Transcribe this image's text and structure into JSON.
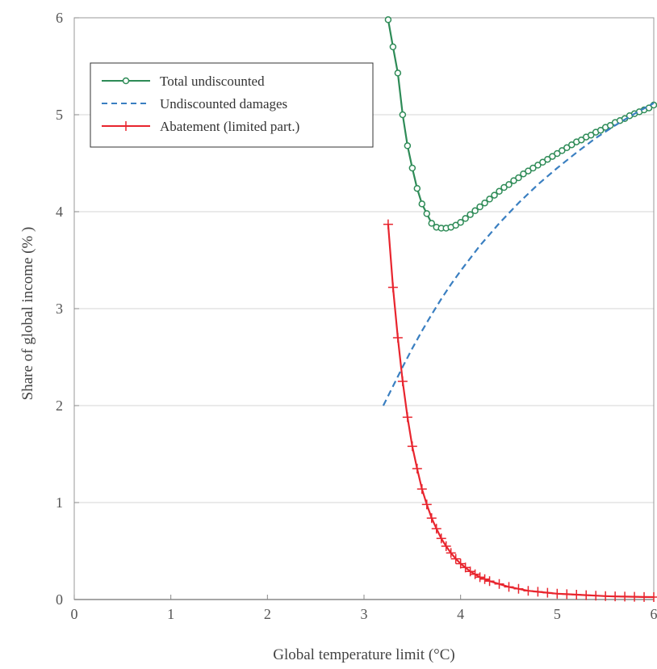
{
  "chart_data": {
    "type": "line",
    "xlabel": "Global temperature limit (°C)",
    "ylabel": "Share of global income (% )",
    "xlim": [
      0,
      6
    ],
    "ylim": [
      0,
      6
    ],
    "x_ticks": [
      "0",
      "1",
      "2",
      "3",
      "4",
      "5",
      "6"
    ],
    "y_ticks": [
      "0",
      "1",
      "2",
      "3",
      "4",
      "5",
      "6"
    ],
    "grid": "horizontal",
    "legend_position": "top-left",
    "series": [
      {
        "name": "Total undiscounted",
        "color": "#2e8b57",
        "style": "solid",
        "marker": "circle",
        "x": [
          3.25,
          3.3,
          3.35,
          3.4,
          3.45,
          3.5,
          3.55,
          3.6,
          3.65,
          3.7,
          3.75,
          3.8,
          3.85,
          3.9,
          3.95,
          4.0,
          4.05,
          4.1,
          4.15,
          4.2,
          4.25,
          4.3,
          4.35,
          4.4,
          4.45,
          4.5,
          4.55,
          4.6,
          4.65,
          4.7,
          4.75,
          4.8,
          4.85,
          4.9,
          4.95,
          5.0,
          5.05,
          5.1,
          5.15,
          5.2,
          5.25,
          5.3,
          5.35,
          5.4,
          5.45,
          5.5,
          5.55,
          5.6,
          5.65,
          5.7,
          5.75,
          5.8,
          5.85,
          5.9,
          5.95,
          6.0
        ],
        "y": [
          5.98,
          5.7,
          5.43,
          5.0,
          4.68,
          4.45,
          4.24,
          4.08,
          3.98,
          3.88,
          3.84,
          3.83,
          3.83,
          3.84,
          3.86,
          3.89,
          3.93,
          3.97,
          4.01,
          4.05,
          4.09,
          4.13,
          4.17,
          4.21,
          4.25,
          4.28,
          4.32,
          4.35,
          4.39,
          4.42,
          4.45,
          4.48,
          4.51,
          4.54,
          4.57,
          4.6,
          4.63,
          4.66,
          4.69,
          4.72,
          4.74,
          4.77,
          4.79,
          4.82,
          4.84,
          4.87,
          4.89,
          4.92,
          4.94,
          4.96,
          4.99,
          5.01,
          5.03,
          5.05,
          5.07,
          5.1
        ]
      },
      {
        "name": "Undiscounted damages",
        "color": "#3a7fc1",
        "style": "dashed",
        "marker": "none",
        "x": [
          3.2,
          3.3,
          3.4,
          3.5,
          3.6,
          3.7,
          3.8,
          3.9,
          4.0,
          4.2,
          4.4,
          4.6,
          4.8,
          5.0,
          5.2,
          5.4,
          5.6,
          5.8,
          6.0
        ],
        "y": [
          2.0,
          2.2,
          2.4,
          2.59,
          2.77,
          2.94,
          3.1,
          3.25,
          3.39,
          3.65,
          3.88,
          4.09,
          4.28,
          4.45,
          4.61,
          4.76,
          4.89,
          5.01,
          5.12
        ]
      },
      {
        "name": "Abatement (limited part.)",
        "color": "#e8252e",
        "style": "solid",
        "marker": "plus",
        "x": [
          3.25,
          3.3,
          3.35,
          3.4,
          3.45,
          3.5,
          3.55,
          3.6,
          3.65,
          3.7,
          3.75,
          3.8,
          3.85,
          3.9,
          3.95,
          4.0,
          4.05,
          4.1,
          4.15,
          4.2,
          4.25,
          4.3,
          4.4,
          4.5,
          4.6,
          4.7,
          4.8,
          4.9,
          5.0,
          5.1,
          5.2,
          5.3,
          5.4,
          5.5,
          5.6,
          5.7,
          5.8,
          5.9,
          6.0
        ],
        "y": [
          3.87,
          3.22,
          2.7,
          2.25,
          1.88,
          1.58,
          1.35,
          1.14,
          0.98,
          0.84,
          0.73,
          0.63,
          0.55,
          0.48,
          0.42,
          0.37,
          0.33,
          0.29,
          0.26,
          0.23,
          0.21,
          0.19,
          0.16,
          0.13,
          0.11,
          0.09,
          0.08,
          0.07,
          0.06,
          0.055,
          0.05,
          0.045,
          0.04,
          0.035,
          0.032,
          0.03,
          0.028,
          0.026,
          0.025
        ]
      }
    ]
  }
}
